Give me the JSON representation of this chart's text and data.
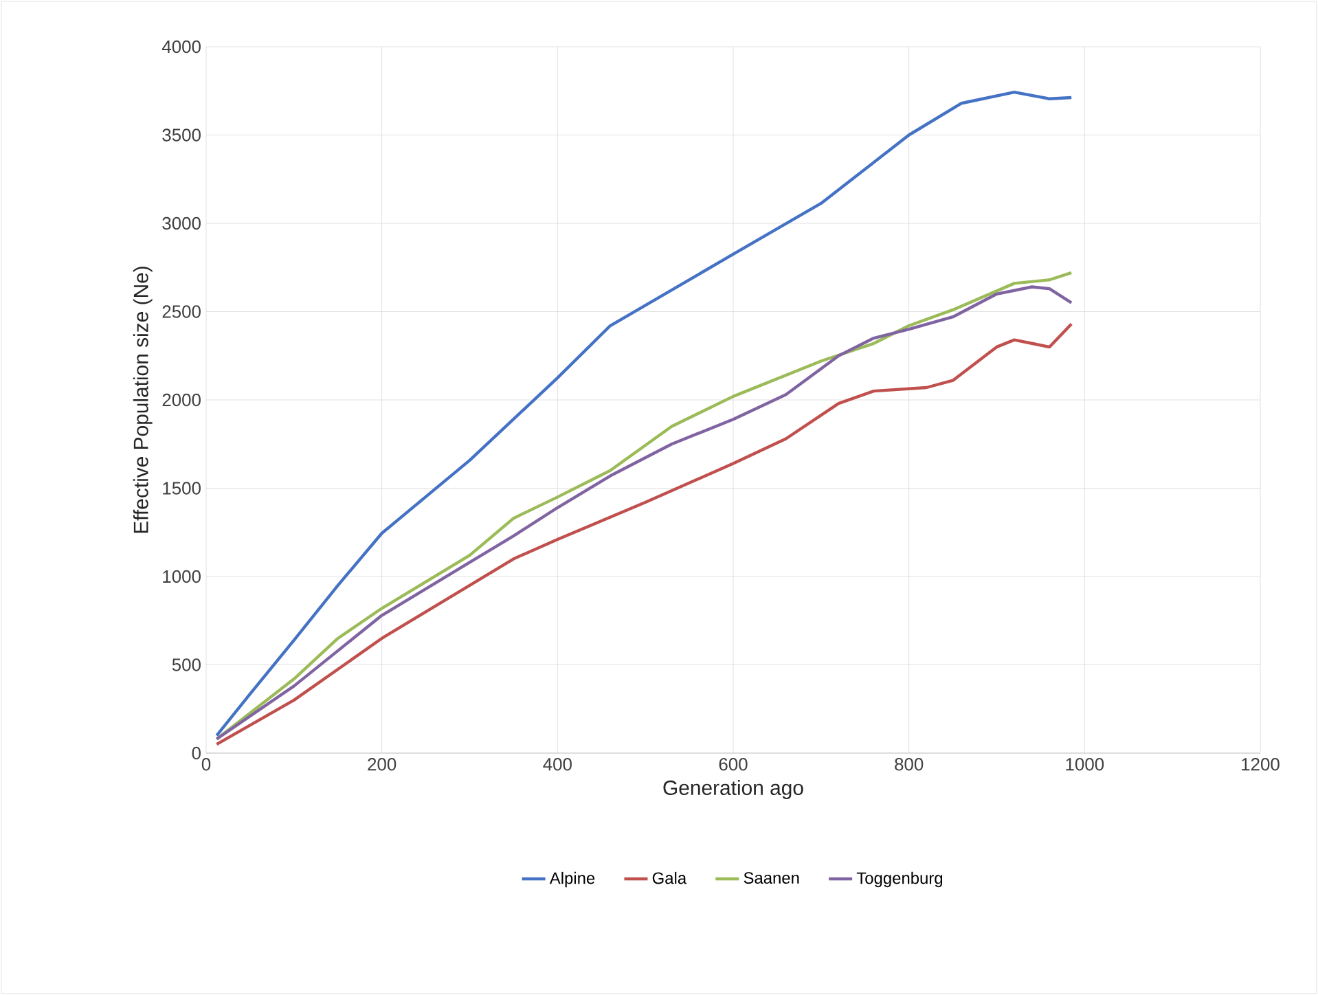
{
  "chart_data": {
    "type": "line",
    "xlabel": "Generation ago",
    "ylabel": "Effective Population size (Ne)",
    "xlim": [
      0,
      1200
    ],
    "xticks": [
      0,
      200,
      400,
      600,
      800,
      1000,
      1200
    ],
    "ylim": [
      0,
      4000
    ],
    "yticks": [
      0,
      500,
      1000,
      1500,
      2000,
      2500,
      3000,
      3500,
      4000
    ],
    "grid": true,
    "legend": "bottom",
    "line_style": "solid",
    "marker": "none",
    "series": [
      {
        "name": "Alpine",
        "color": "#4472c4",
        "x": [
          12,
          50,
          100,
          150,
          200,
          300,
          400,
          460,
          600,
          700,
          800,
          860,
          920,
          960,
          985
        ],
        "values": [
          100,
          335,
          640,
          950,
          1245,
          1658,
          2125,
          2420,
          2825,
          3113,
          3500,
          3680,
          3743,
          3705,
          3712
        ]
      },
      {
        "name": "Gala",
        "color": "#c0504d",
        "x": [
          12,
          100,
          200,
          300,
          350,
          400,
          500,
          600,
          660,
          720,
          760,
          820,
          850,
          900,
          920,
          940,
          960,
          985
        ],
        "values": [
          50,
          300,
          650,
          950,
          1100,
          1210,
          1420,
          1640,
          1780,
          1980,
          2050,
          2070,
          2110,
          2300,
          2340,
          2320,
          2300,
          2430
        ]
      },
      {
        "name": "Saanen",
        "color": "#9bbb59",
        "x": [
          12,
          100,
          150,
          200,
          300,
          350,
          400,
          460,
          530,
          600,
          700,
          760,
          800,
          850,
          920,
          960,
          985
        ],
        "values": [
          80,
          420,
          650,
          820,
          1120,
          1330,
          1450,
          1600,
          1850,
          2020,
          2220,
          2320,
          2420,
          2510,
          2660,
          2680,
          2720
        ]
      },
      {
        "name": "Toggenburg",
        "color": "#8064a2",
        "x": [
          12,
          100,
          200,
          300,
          350,
          400,
          460,
          530,
          600,
          660,
          720,
          760,
          800,
          850,
          900,
          940,
          960,
          985
        ],
        "values": [
          80,
          380,
          780,
          1080,
          1230,
          1390,
          1570,
          1750,
          1890,
          2030,
          2250,
          2350,
          2400,
          2470,
          2600,
          2640,
          2630,
          2550
        ]
      }
    ]
  }
}
